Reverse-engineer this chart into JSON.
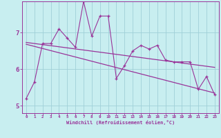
{
  "xlabel": "Windchill (Refroidissement éolien,°C)",
  "background_color": "#c8eef0",
  "grid_color": "#a0d0d8",
  "line_color": "#993399",
  "xlim": [
    -0.5,
    23.5
  ],
  "ylim": [
    4.8,
    7.85
  ],
  "yticks": [
    5,
    6,
    7
  ],
  "xticks": [
    0,
    1,
    2,
    3,
    4,
    5,
    6,
    7,
    8,
    9,
    10,
    11,
    12,
    13,
    14,
    15,
    16,
    17,
    18,
    19,
    20,
    21,
    22,
    23
  ],
  "hours": [
    0,
    1,
    2,
    3,
    4,
    5,
    6,
    7,
    8,
    9,
    10,
    11,
    12,
    13,
    14,
    15,
    16,
    17,
    18,
    19,
    20,
    21,
    22,
    23
  ],
  "windchill": [
    5.2,
    5.65,
    6.7,
    6.7,
    7.1,
    6.85,
    6.6,
    7.85,
    6.9,
    7.45,
    7.45,
    5.75,
    6.1,
    6.5,
    6.65,
    6.55,
    6.65,
    6.25,
    6.2,
    6.2,
    6.2,
    5.45,
    5.8,
    5.3
  ],
  "trend1_x": [
    0,
    23
  ],
  "trend1_y": [
    6.73,
    6.05
  ],
  "trend2_x": [
    0,
    23
  ],
  "trend2_y": [
    6.68,
    5.35
  ]
}
